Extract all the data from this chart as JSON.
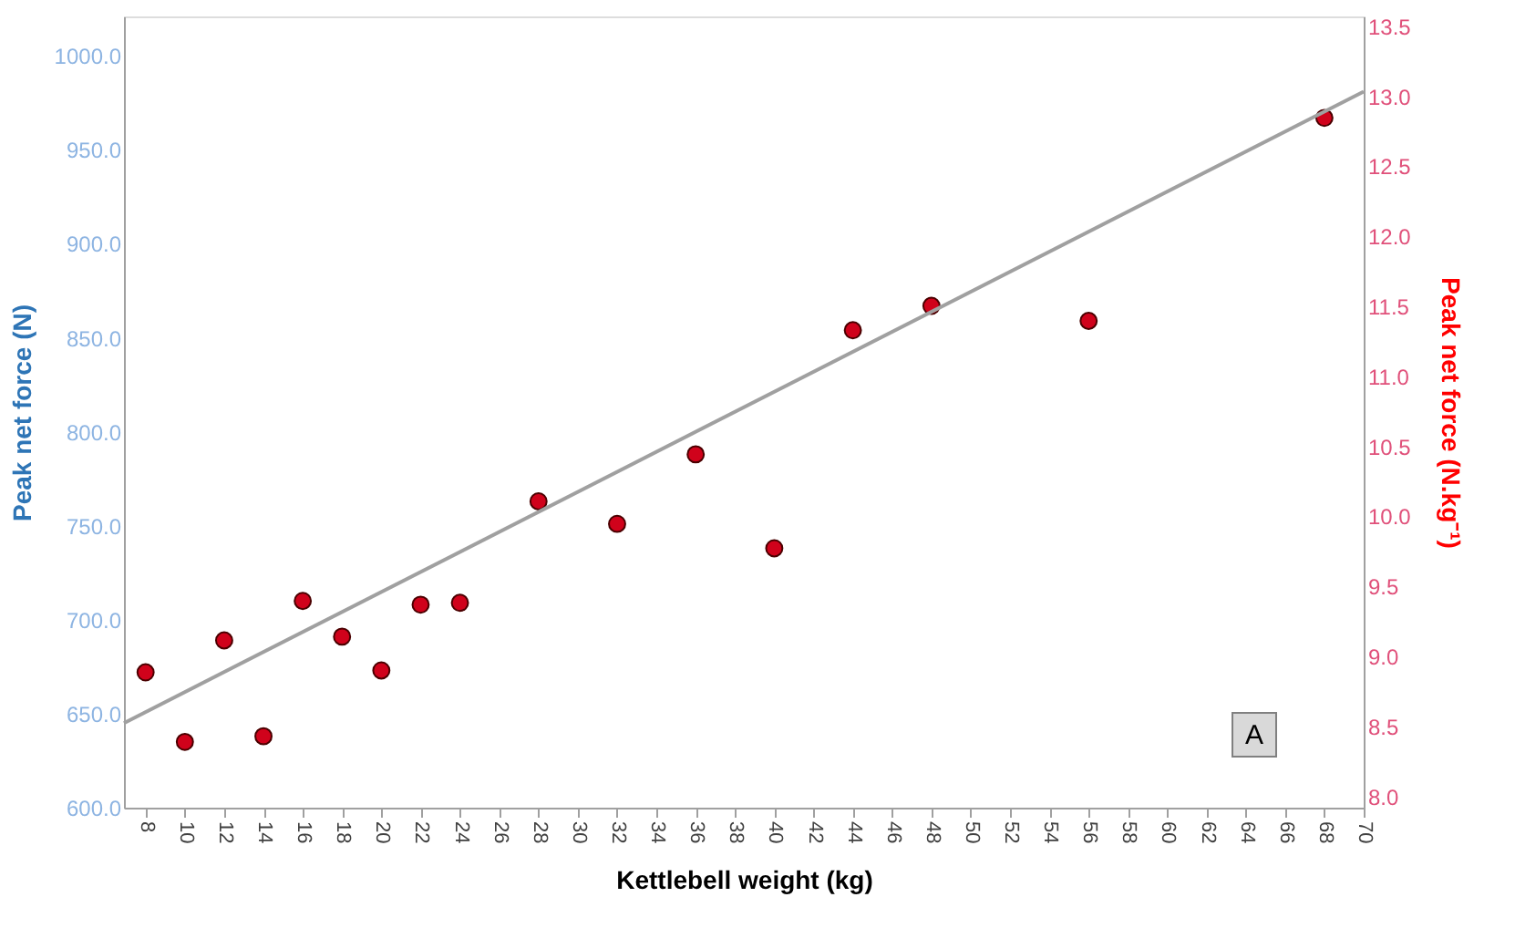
{
  "chart_data": {
    "type": "scatter",
    "xlabel": "Kettlebell weight (kg)",
    "ylabel": "Peak net force (N)",
    "y2label": "Peak net force (N.kg⁻¹)",
    "xlim": [
      6.9,
      70
    ],
    "xticks": [
      8,
      10,
      12,
      14,
      16,
      18,
      20,
      22,
      24,
      26,
      28,
      30,
      32,
      34,
      36,
      38,
      40,
      42,
      44,
      46,
      48,
      50,
      52,
      54,
      56,
      58,
      60,
      62,
      64,
      66,
      68,
      70
    ],
    "ylim": [
      600,
      1021
    ],
    "yticks": [
      {
        "value": 600,
        "label": "600.0"
      },
      {
        "value": 650,
        "label": "650.0"
      },
      {
        "value": 700,
        "label": "700.0"
      },
      {
        "value": 750,
        "label": "750.0"
      },
      {
        "value": 800,
        "label": "800.0"
      },
      {
        "value": 850,
        "label": "850.0"
      },
      {
        "value": 900,
        "label": "900.0"
      },
      {
        "value": 950,
        "label": "950.0"
      },
      {
        "value": 1000,
        "label": "1000.0"
      }
    ],
    "y2lim": [
      7.92,
      13.57
    ],
    "y2ticks": [
      {
        "value": 8,
        "label": "8.0"
      },
      8.5,
      {
        "value": 9,
        "label": "9.0"
      },
      9.5,
      {
        "value": 10,
        "label": "10.0"
      },
      10.5,
      {
        "value": 11,
        "label": "11.0"
      },
      11.5,
      {
        "value": 12,
        "label": "12.0"
      },
      12.5,
      {
        "value": 13,
        "label": "13.0"
      },
      13.5
    ],
    "series": [
      {
        "color": "#d0021b",
        "marker": "circle",
        "x": [
          8,
          10,
          12,
          14,
          16,
          18,
          20,
          22,
          24,
          28,
          32,
          36,
          40,
          44,
          48,
          56,
          68
        ],
        "values": [
          672,
          635,
          689,
          638,
          710,
          691,
          673,
          708,
          709,
          763,
          751,
          788,
          738,
          854,
          867,
          859,
          967
        ]
      },
      {
        "type": "line",
        "color": "#a0a0a0",
        "line_style": "solid",
        "x": [
          6.9,
          70
        ],
        "values": [
          645,
          981
        ]
      }
    ],
    "annotations": [
      "A"
    ],
    "grid": false
  }
}
